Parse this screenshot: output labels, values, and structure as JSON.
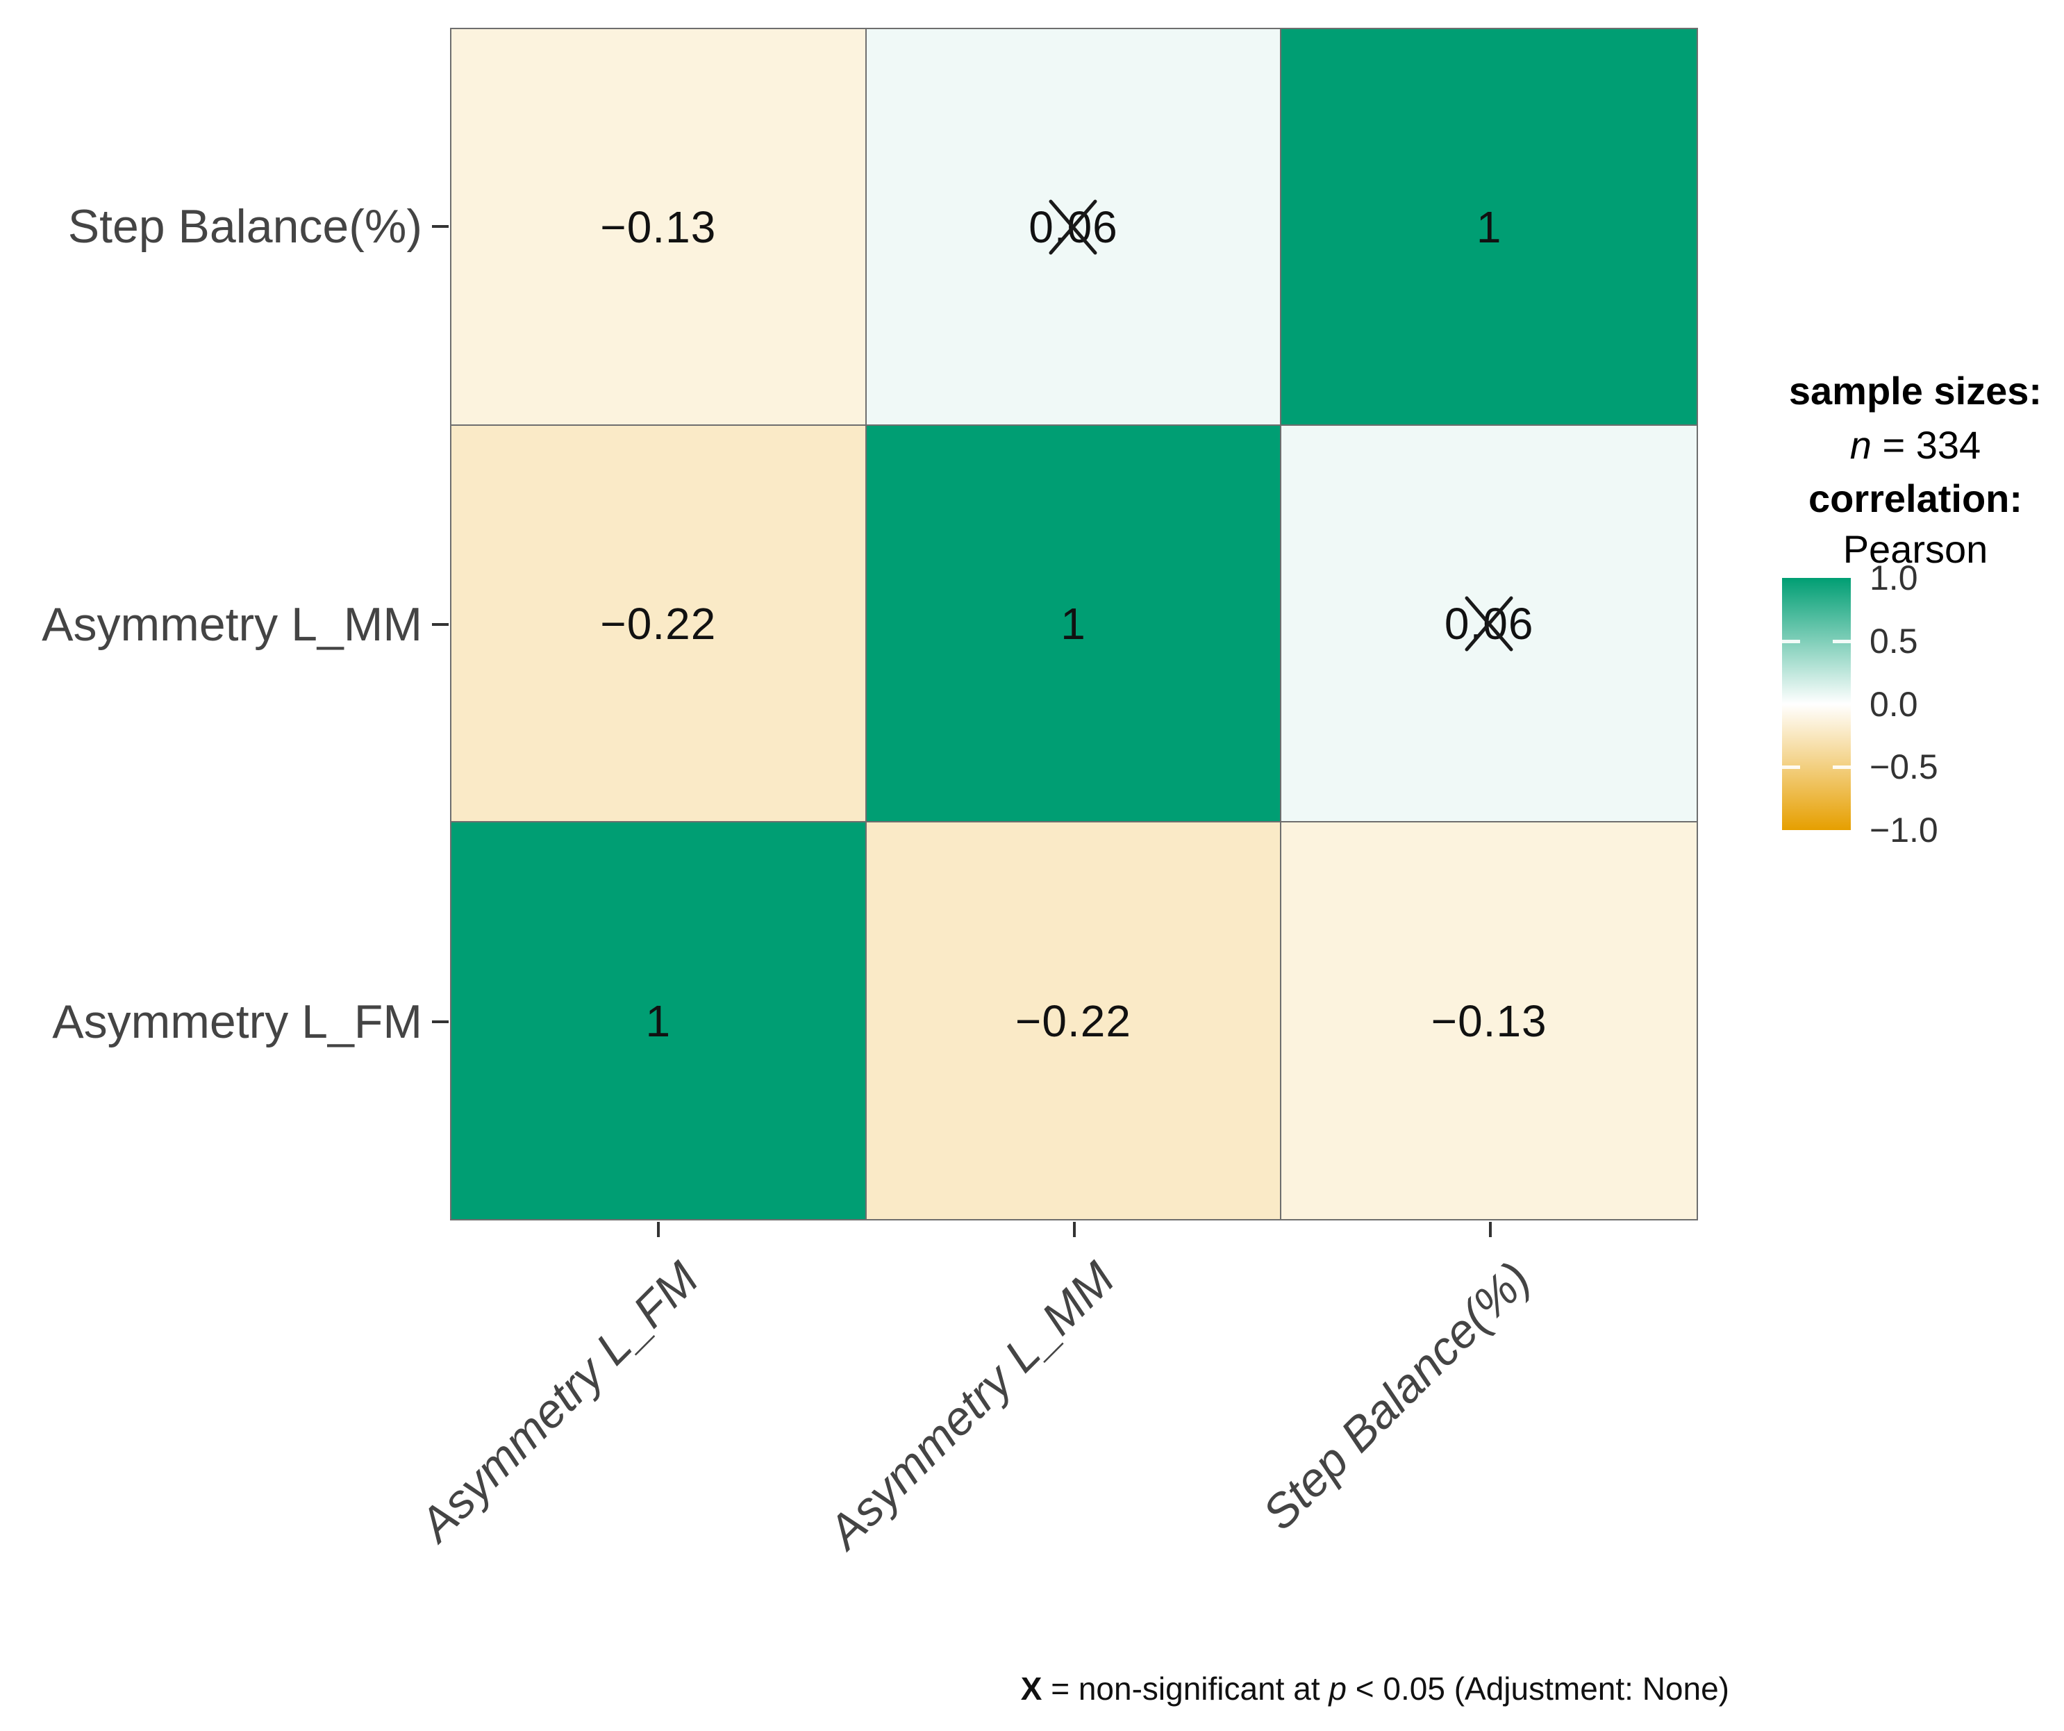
{
  "figure": {
    "background": "#FFFFFF"
  },
  "chart_data": {
    "type": "heatmap",
    "title": "",
    "x_axis_labels": [
      "Asymmetry L_FM",
      "Asymmetry L_MM",
      "Step Balance(%)"
    ],
    "y_axis_labels_top_to_bottom": [
      "Step Balance(%)",
      "Asymmetry L_MM",
      "Asymmetry L_FM"
    ],
    "matrix_rows_top_to_bottom": [
      {
        "row": "Step Balance(%)",
        "cells": [
          {
            "value": -0.13,
            "label": "−0.13",
            "non_significant": false
          },
          {
            "value": 0.06,
            "label": "0.06",
            "non_significant": true
          },
          {
            "value": 1,
            "label": "1",
            "non_significant": false
          }
        ]
      },
      {
        "row": "Asymmetry L_MM",
        "cells": [
          {
            "value": -0.22,
            "label": "−0.22",
            "non_significant": false
          },
          {
            "value": 1,
            "label": "1",
            "non_significant": false
          },
          {
            "value": 0.06,
            "label": "0.06",
            "non_significant": true
          }
        ]
      },
      {
        "row": "Asymmetry L_FM",
        "cells": [
          {
            "value": 1,
            "label": "1",
            "non_significant": false
          },
          {
            "value": -0.22,
            "label": "−0.22",
            "non_significant": false
          },
          {
            "value": -0.13,
            "label": "−0.13",
            "non_significant": false
          }
        ]
      }
    ],
    "colorscale": {
      "min": -1.0,
      "max": 1.0,
      "negative_color": "#E69F00",
      "zero_color": "#FFFFFF",
      "positive_color": "#009E73",
      "tick_labels": [
        "1.0",
        "0.5",
        "0.0",
        "−0.5",
        "−1.0"
      ],
      "tick_values": [
        1.0,
        0.5,
        0.0,
        -0.5,
        -1.0
      ]
    },
    "legend": {
      "sample_sizes_title": "sample sizes:",
      "n_symbol": "n",
      "n_value": " = 334",
      "correlation_title": "correlation:",
      "correlation_method": "Pearson"
    },
    "caption": {
      "x_symbol": "X",
      "text_1": " = non-significant at ",
      "p_symbol": "p",
      "text_2": " < 0.05 (Adjustment: None)"
    }
  },
  "style": {
    "grid_line_color": "#6E6E6E",
    "axis_text_color": "#444444",
    "cell_text_color": "#111111",
    "x_mark_color": "#1A1A1A"
  }
}
